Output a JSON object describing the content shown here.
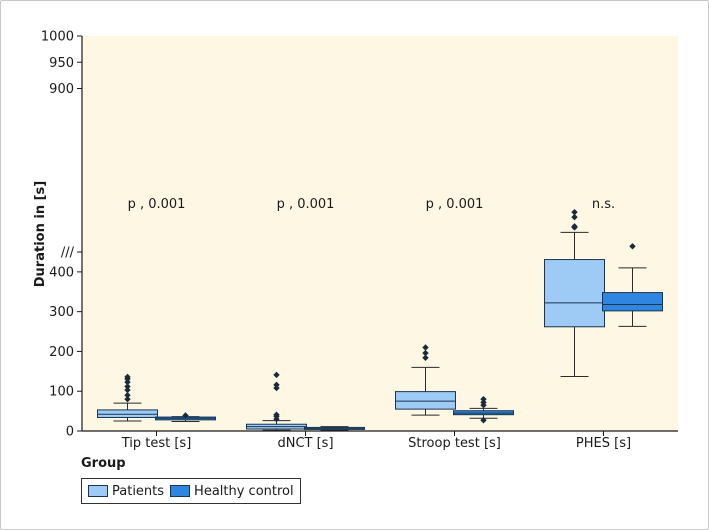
{
  "chart_data": {
    "type": "boxplot",
    "ylabel": "Duration in [s]",
    "xlabel": "",
    "axis_break": true,
    "lower_segment": {
      "range": [
        0,
        450
      ],
      "ticks": [
        0,
        100,
        200,
        300,
        400
      ],
      "tick_labels": [
        "0",
        "100",
        "200",
        "300",
        "400"
      ]
    },
    "upper_segment": {
      "range": [
        880,
        1000
      ],
      "ticks": [
        900,
        950,
        1000
      ],
      "tick_labels": [
        "900",
        "950",
        "1000"
      ]
    },
    "break_marker": "///",
    "categories": [
      "Tip test [s]",
      "dNCT [s]",
      "Stroop test [s]",
      "PHES [s]"
    ],
    "legend_title": "Group",
    "series": [
      {
        "name": "Patients",
        "color": "#9ecbf5",
        "boxes": [
          {
            "whisker_low": 25,
            "q1": 34,
            "median": 42,
            "q3": 53,
            "whisker_high": 70,
            "outliers": [
              80,
              90,
              103,
              112,
              123,
              131,
              136
            ]
          },
          {
            "whisker_low": 2,
            "q1": 5,
            "median": 11,
            "q3": 17,
            "whisker_high": 26,
            "outliers": [
              30,
              37,
              41,
              108,
              116,
              141
            ]
          },
          {
            "whisker_low": 40,
            "q1": 55,
            "median": 75,
            "q3": 99,
            "whisker_high": 160,
            "outliers": [
              184,
              196,
              210
            ]
          },
          {
            "whisker_low": 137,
            "q1": 262,
            "median": 322,
            "q3": 431,
            "whisker_high": 505,
            "outliers": [
              519,
              522,
              548,
              562
            ]
          }
        ]
      },
      {
        "name": "Healthy control",
        "color": "#2e86e0",
        "boxes": [
          {
            "whisker_low": 24,
            "q1": 28,
            "median": 32,
            "q3": 35,
            "whisker_high": 36,
            "outliers": [
              39
            ]
          },
          {
            "whisker_low": 2,
            "q1": 4,
            "median": 6,
            "q3": 9,
            "whisker_high": 11,
            "outliers": []
          },
          {
            "whisker_low": 32,
            "q1": 41,
            "median": 45,
            "q3": 51,
            "whisker_high": 57,
            "outliers": [
              27,
              65,
              72,
              80
            ]
          },
          {
            "whisker_low": 263,
            "q1": 302,
            "median": 318,
            "q3": 348,
            "whisker_high": 410,
            "outliers": [
              466
            ]
          }
        ]
      }
    ],
    "annotations": [
      "p , 0.001",
      "p , 0.001",
      "p , 0.001",
      "n.s."
    ]
  }
}
